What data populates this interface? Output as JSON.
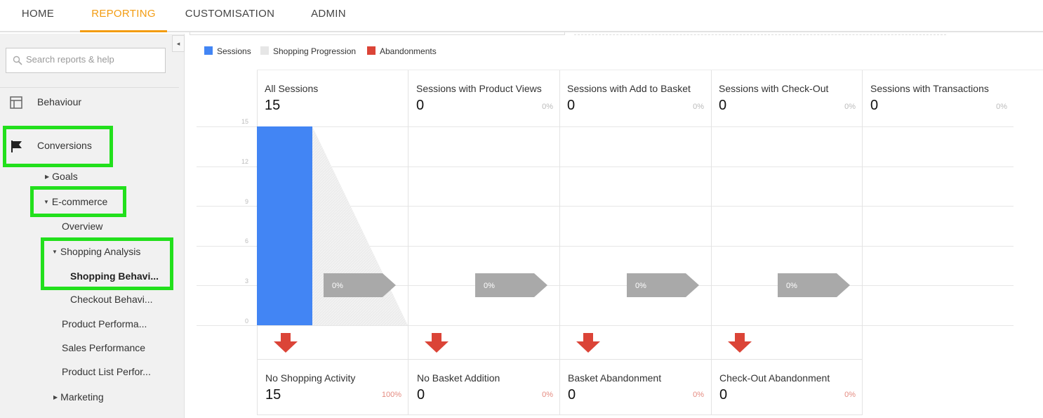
{
  "topnav": {
    "tabs": [
      {
        "label": "HOME"
      },
      {
        "label": "REPORTING"
      },
      {
        "label": "CUSTOMISATION"
      },
      {
        "label": "ADMIN"
      }
    ]
  },
  "sidebar": {
    "search_placeholder": "Search reports & help",
    "collapse_icon": "◂",
    "behaviour": "Behaviour",
    "conversions": "Conversions",
    "goals": "Goals",
    "ecommerce": "E-commerce",
    "overview": "Overview",
    "shopping_analysis": "Shopping Analysis",
    "shopping_behaviour": "Shopping Behavi...",
    "checkout_behaviour": "Checkout Behavi...",
    "product_performance": "Product Performa...",
    "sales_performance": "Sales Performance",
    "product_list_performance": "Product List Perfor...",
    "marketing": "Marketing"
  },
  "legend": {
    "sessions": {
      "label": "Sessions",
      "color": "#4285f4"
    },
    "progression": {
      "label": "Shopping Progression",
      "color": "#e6e6e6"
    },
    "abandonments": {
      "label": "Abandonments",
      "color": "#db4437"
    }
  },
  "chart_data": {
    "type": "bar",
    "ylim": [
      0,
      15
    ],
    "yticks": [
      "15",
      "12",
      "9",
      "6",
      "3",
      "0"
    ],
    "stages": [
      {
        "name": "All Sessions",
        "value": "15",
        "pct": ""
      },
      {
        "name": "Sessions with Product Views",
        "value": "0",
        "pct": "0%"
      },
      {
        "name": "Sessions with Add to Basket",
        "value": "0",
        "pct": "0%"
      },
      {
        "name": "Sessions with Check-Out",
        "value": "0",
        "pct": "0%"
      },
      {
        "name": "Sessions with Transactions",
        "value": "0",
        "pct": "0%"
      }
    ],
    "sessions_values": [
      15,
      0,
      0,
      0,
      0
    ],
    "progression_labels": [
      "0%",
      "0%",
      "0%",
      "0%"
    ],
    "abandonments": [
      {
        "name": "No Shopping Activity",
        "value": "15",
        "pct": "100%"
      },
      {
        "name": "No Basket Addition",
        "value": "0",
        "pct": "0%"
      },
      {
        "name": "Basket Abandonment",
        "value": "0",
        "pct": "0%"
      },
      {
        "name": "Check-Out Abandonment",
        "value": "0",
        "pct": "0%"
      }
    ]
  }
}
